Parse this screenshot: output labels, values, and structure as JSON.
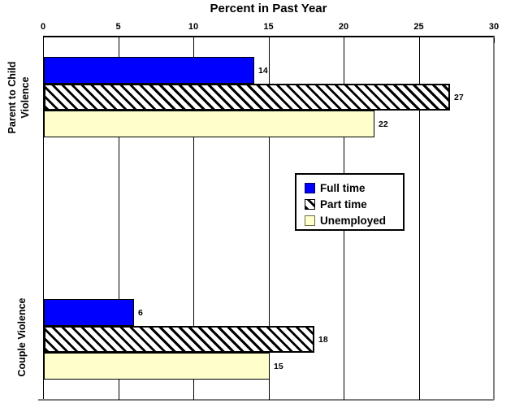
{
  "chart_data": {
    "type": "bar",
    "orientation": "horizontal",
    "title": "Percent in Past Year",
    "categories": [
      "Parent to Child Violence",
      "Couple Violence"
    ],
    "category_display": [
      "Parent to Child\nViolence",
      "Couple Violence"
    ],
    "series": [
      {
        "name": "Full time",
        "fill": "solid",
        "color": "#0000ff",
        "values": [
          14,
          6
        ]
      },
      {
        "name": "Part time",
        "fill": "diagonal-hatch",
        "color": "#000000",
        "values": [
          27,
          18
        ]
      },
      {
        "name": "Unemployed",
        "fill": "solid",
        "color": "#ffffcc",
        "values": [
          22,
          15
        ]
      }
    ],
    "data_labels": [
      [
        "14",
        "27",
        "22"
      ],
      [
        "6",
        "18",
        "15"
      ]
    ],
    "xlim": [
      0,
      30
    ],
    "x_ticks": [
      0,
      5,
      10,
      15,
      20,
      25,
      30
    ],
    "x_tick_labels": [
      "0",
      "5",
      "10",
      "15",
      "20",
      "25",
      "30"
    ],
    "grid": true,
    "axis_position": "top",
    "legend_position": "center-right"
  },
  "colors": {
    "axis": "#000000",
    "grid": "#000000",
    "plot_border": "#808080",
    "full_time": "#0000ff",
    "unemployed": "#ffffcc",
    "hatch": "#000000",
    "background": "#ffffff"
  }
}
